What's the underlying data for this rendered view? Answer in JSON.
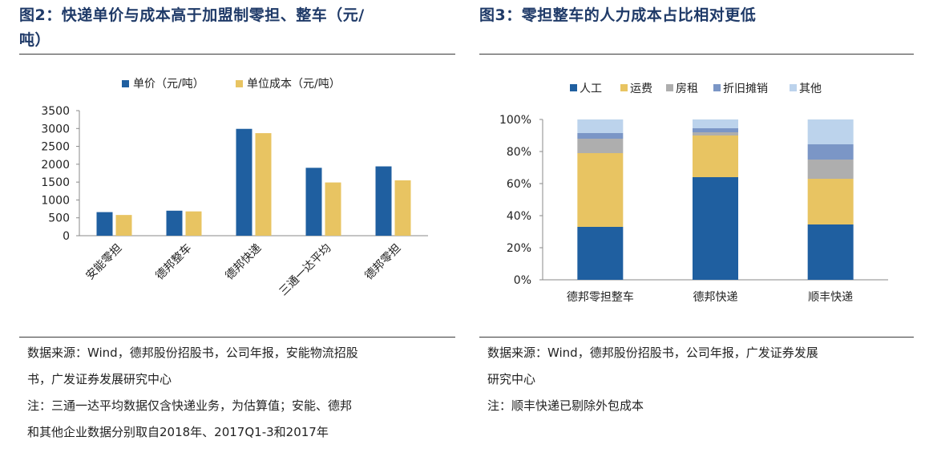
{
  "figures": [
    {
      "title_lines": [
        "图2：快递单价与成本高于加盟制零担、整车（元/",
        "吨）"
      ],
      "notes": [
        "数据来源：Wind，德邦股份招股书，公司年报，安能物流招股",
        "书，广发证券发展研究中心",
        "注：三通一达平均数据仅含快递业务，为估算值；安能、德邦",
        "和其他企业数据分别取自2018年、2017Q1-3和2017年"
      ],
      "chart_data": {
        "type": "bar",
        "categories": [
          "安能零担",
          "德邦整车",
          "德邦快递",
          "三通一达平均",
          "德邦零担"
        ],
        "series": [
          {
            "name": "单价（元/吨）",
            "color": "#1f5fa0",
            "values": [
              660,
              700,
              2990,
              1900,
              1940
            ]
          },
          {
            "name": "单位成本（元/吨）",
            "color": "#e8c462",
            "values": [
              580,
              680,
              2870,
              1490,
              1550
            ]
          }
        ],
        "yticks": [
          0,
          500,
          1000,
          1500,
          2000,
          2500,
          3000,
          3500
        ],
        "ylim": [
          0,
          3500
        ],
        "legend_position": "top"
      }
    },
    {
      "title_lines": [
        "图3：零担整车的人力成本占比相对更低"
      ],
      "notes": [
        "数据来源：Wind，德邦股份招股书，公司年报，广发证券发展",
        "研究中心",
        "注：顺丰快递已剔除外包成本"
      ],
      "chart_data": {
        "type": "bar",
        "stacked": true,
        "categories": [
          "德邦零担整车",
          "德邦快递",
          "顺丰快递"
        ],
        "series": [
          {
            "name": "人工",
            "color": "#1f5fa0",
            "values": [
              33,
              64,
              34.5
            ]
          },
          {
            "name": "运费",
            "color": "#e8c462",
            "values": [
              46,
              26,
              28.5
            ]
          },
          {
            "name": "房租",
            "color": "#aeaeae",
            "values": [
              9,
              2,
              12
            ]
          },
          {
            "name": "折旧摊销",
            "color": "#7b96c6",
            "values": [
              3.5,
              2.5,
              9.5
            ]
          },
          {
            "name": "其他",
            "color": "#bcd3ec",
            "values": [
              8.5,
              5.5,
              15.5
            ]
          }
        ],
        "yticks": [
          "0%",
          "20%",
          "40%",
          "60%",
          "80%",
          "100%"
        ],
        "ylim": [
          0,
          100
        ],
        "legend_position": "top"
      }
    }
  ]
}
